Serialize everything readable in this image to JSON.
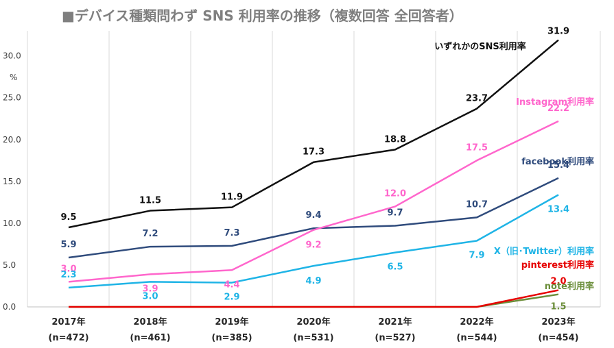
{
  "chart_data": {
    "type": "line",
    "title": "■デバイス種類問わず SNS 利用率の推移（複数回答 全回答者）",
    "unit": "%",
    "ylim": [
      0,
      33
    ],
    "yticks": [
      "0.0",
      "5.0",
      "10.0",
      "15.0",
      "20.0",
      "25.0",
      "30.0"
    ],
    "ytick_values": [
      0,
      5,
      10,
      15,
      20,
      25,
      30
    ],
    "categories": [
      "2017年",
      "2018年",
      "2019年",
      "2020年",
      "2021年",
      "2022年",
      "2023年"
    ],
    "sample_sizes": [
      "(n=472)",
      "(n=461)",
      "(n=385)",
      "(n=531)",
      "(n=527)",
      "(n=544)",
      "(n=454)"
    ],
    "grid": "vertical",
    "series": [
      {
        "name": "いずれかのSNS利用率",
        "color": "#111111",
        "values": [
          9.5,
          11.5,
          11.9,
          17.3,
          18.8,
          23.7,
          31.9
        ],
        "labels": [
          "9.5",
          "11.5",
          "11.9",
          "17.3",
          "18.8",
          "23.7",
          "31.9"
        ]
      },
      {
        "name": "Instagram利用率",
        "color": "#ff66cc",
        "values": [
          3.0,
          3.9,
          4.4,
          9.2,
          12.0,
          17.5,
          22.2
        ],
        "labels": [
          "3.0",
          "3.9",
          "4.4",
          "9.2",
          "12.0",
          "17.5",
          "22.2"
        ]
      },
      {
        "name": "facebook利用率",
        "color": "#2f4b7c",
        "values": [
          5.9,
          7.2,
          7.3,
          9.4,
          9.7,
          10.7,
          15.4
        ],
        "labels": [
          "5.9",
          "7.2",
          "7.3",
          "9.4",
          "9.7",
          "10.7",
          "15.4"
        ]
      },
      {
        "name": "X（旧･Twitter）利用率",
        "color": "#1fb4e6",
        "values": [
          2.3,
          3.0,
          2.9,
          4.9,
          6.5,
          7.9,
          13.4
        ],
        "labels": [
          "2.3",
          "3.0",
          "2.9",
          "4.9",
          "6.5",
          "7.9",
          "13.4"
        ]
      },
      {
        "name": "pinterest利用率",
        "color": "#e60000",
        "values": [
          0,
          0,
          0,
          0,
          0,
          0,
          2.0
        ],
        "labels": [
          "",
          "",
          "",
          "",
          "",
          "",
          "2.0"
        ]
      },
      {
        "name": "note利用率",
        "color": "#6b8e3a",
        "values": [
          0,
          0,
          0,
          0,
          0,
          0,
          1.5
        ],
        "labels": [
          "",
          "",
          "",
          "",
          "",
          "",
          "1.5"
        ]
      }
    ]
  }
}
